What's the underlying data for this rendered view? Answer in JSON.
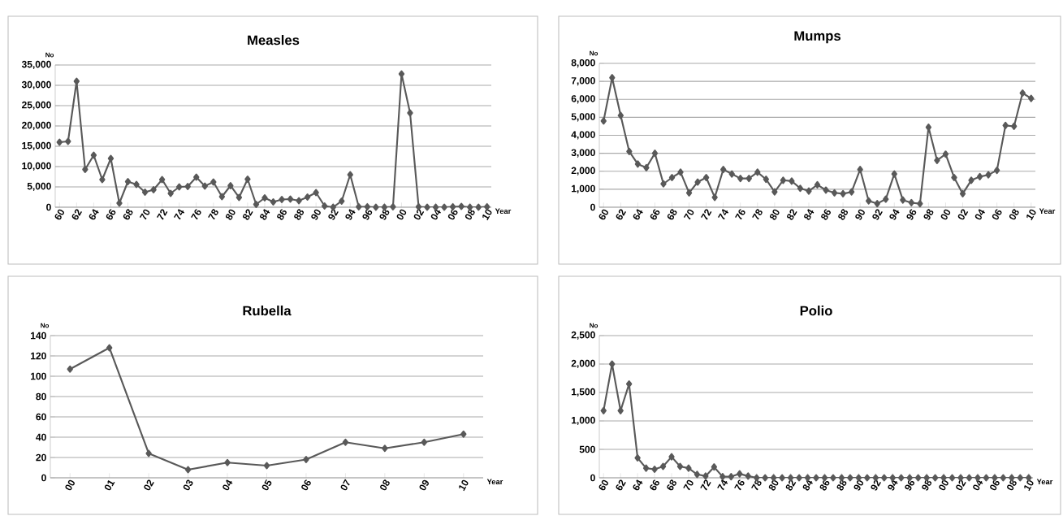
{
  "chart_data": [
    {
      "type": "line",
      "title": "Measles",
      "ylabel": "No",
      "xlabel": "Year",
      "color": "#595959",
      "marker": "diamond",
      "line_style": "solid",
      "grid": "y",
      "categories": [
        "60",
        null,
        "62",
        null,
        "64",
        null,
        "66",
        null,
        "68",
        null,
        "70",
        null,
        "72",
        null,
        "74",
        null,
        "76",
        null,
        "78",
        null,
        "80",
        null,
        "82",
        null,
        "84",
        null,
        "86",
        null,
        "88",
        null,
        "90",
        null,
        "92",
        null,
        "94",
        null,
        "96",
        null,
        "98",
        null,
        "00",
        null,
        "02",
        null,
        "04",
        null,
        "06",
        null,
        "08",
        null,
        "10"
      ],
      "values": [
        16000,
        16200,
        31000,
        9300,
        12800,
        6800,
        12000,
        1000,
        6300,
        5600,
        3700,
        4300,
        6800,
        3400,
        5000,
        5100,
        7400,
        5200,
        6200,
        2600,
        5300,
        2400,
        6900,
        700,
        2300,
        1300,
        1900,
        2000,
        1600,
        2500,
        3600,
        300,
        0,
        1500,
        8000,
        100,
        100,
        0,
        0,
        100,
        32800,
        23200,
        100,
        0,
        0,
        0,
        100,
        200,
        0,
        0,
        100
      ],
      "ylim": [
        0,
        35000
      ],
      "yticks": [
        0,
        {
          "value": 5000,
          "label": "5,000"
        },
        {
          "value": 10000,
          "label": "10,000"
        },
        {
          "value": 15000,
          "label": "15,000"
        },
        {
          "value": 20000,
          "label": "20,000"
        },
        {
          "value": 25000,
          "label": "25,000"
        },
        {
          "value": 30000,
          "label": "30,000"
        },
        {
          "value": 35000,
          "label": "35,000"
        }
      ]
    },
    {
      "type": "line",
      "title": "Mumps",
      "ylabel": "No",
      "xlabel": "Year",
      "color": "#595959",
      "marker": "diamond",
      "line_style": "solid",
      "grid": "y",
      "categories": [
        "60",
        null,
        "62",
        null,
        "64",
        null,
        "66",
        null,
        "68",
        null,
        "70",
        null,
        "72",
        null,
        "74",
        null,
        "76",
        null,
        "78",
        null,
        "80",
        null,
        "82",
        null,
        "84",
        null,
        "86",
        null,
        "88",
        null,
        "90",
        null,
        "92",
        null,
        "94",
        null,
        "96",
        null,
        "98",
        null,
        "00",
        null,
        "02",
        null,
        "04",
        null,
        "06",
        null,
        "08",
        null,
        "10"
      ],
      "values": [
        4800,
        7200,
        5100,
        3100,
        2400,
        2200,
        3000,
        1300,
        1650,
        1950,
        800,
        1400,
        1650,
        550,
        2100,
        1850,
        1600,
        1600,
        1950,
        1550,
        850,
        1500,
        1450,
        1050,
        900,
        1250,
        950,
        800,
        750,
        850,
        2100,
        350,
        200,
        450,
        1850,
        400,
        250,
        200,
        4450,
        2600,
        2950,
        1650,
        750,
        1500,
        1700,
        1800,
        2050,
        4550,
        4500,
        6350,
        6050
      ],
      "ylim": [
        0,
        8000
      ],
      "yticks": [
        0,
        {
          "value": 1000,
          "label": "1,000"
        },
        {
          "value": 2000,
          "label": "2,000"
        },
        {
          "value": 3000,
          "label": "3,000"
        },
        {
          "value": 4000,
          "label": "4,000"
        },
        {
          "value": 5000,
          "label": "5,000"
        },
        {
          "value": 6000,
          "label": "6,000"
        },
        {
          "value": 7000,
          "label": "7,000"
        },
        {
          "value": 8000,
          "label": "8,000"
        }
      ]
    },
    {
      "type": "line",
      "title": "Rubella",
      "ylabel": "No",
      "xlabel": "Year",
      "color": "#595959",
      "marker": "diamond",
      "line_style": "solid",
      "grid": "y",
      "categories": [
        "00",
        "01",
        "02",
        "03",
        "04",
        "05",
        "06",
        "07",
        "08",
        "09",
        "10"
      ],
      "values": [
        107,
        128,
        24,
        8,
        15,
        12,
        18,
        35,
        29,
        35,
        43
      ],
      "ylim": [
        0,
        140
      ],
      "yticks": [
        0,
        20,
        40,
        60,
        80,
        100,
        120,
        140
      ]
    },
    {
      "type": "line",
      "title": "Polio",
      "ylabel": "No",
      "xlabel": "Year",
      "color": "#595959",
      "marker": "diamond",
      "line_style": "solid",
      "grid": "y",
      "categories": [
        "60",
        null,
        "62",
        null,
        "64",
        null,
        "66",
        null,
        "68",
        null,
        "70",
        null,
        "72",
        null,
        "74",
        null,
        "76",
        null,
        "78",
        null,
        "80",
        null,
        "82",
        null,
        "84",
        null,
        "86",
        null,
        "88",
        null,
        "90",
        null,
        "92",
        null,
        "94",
        null,
        "96",
        null,
        "98",
        null,
        "00",
        null,
        "02",
        null,
        "04",
        null,
        "06",
        null,
        "08",
        null,
        "10"
      ],
      "values": [
        1180,
        2000,
        1180,
        1650,
        350,
        170,
        150,
        200,
        370,
        200,
        170,
        60,
        30,
        190,
        20,
        20,
        70,
        30,
        0,
        0,
        0,
        0,
        0,
        0,
        0,
        0,
        0,
        0,
        0,
        0,
        0,
        0,
        0,
        0,
        0,
        0,
        0,
        0,
        0,
        0,
        0,
        0,
        0,
        0,
        0,
        0,
        0,
        0,
        0,
        0,
        0
      ],
      "ylim": [
        0,
        2500
      ],
      "yticks": [
        0,
        {
          "value": 500,
          "label": "500"
        },
        {
          "value": 1000,
          "label": "1,000"
        },
        {
          "value": 1500,
          "label": "1,500"
        },
        {
          "value": 2000,
          "label": "2,000"
        },
        {
          "value": 2500,
          "label": "2,500"
        }
      ]
    }
  ]
}
